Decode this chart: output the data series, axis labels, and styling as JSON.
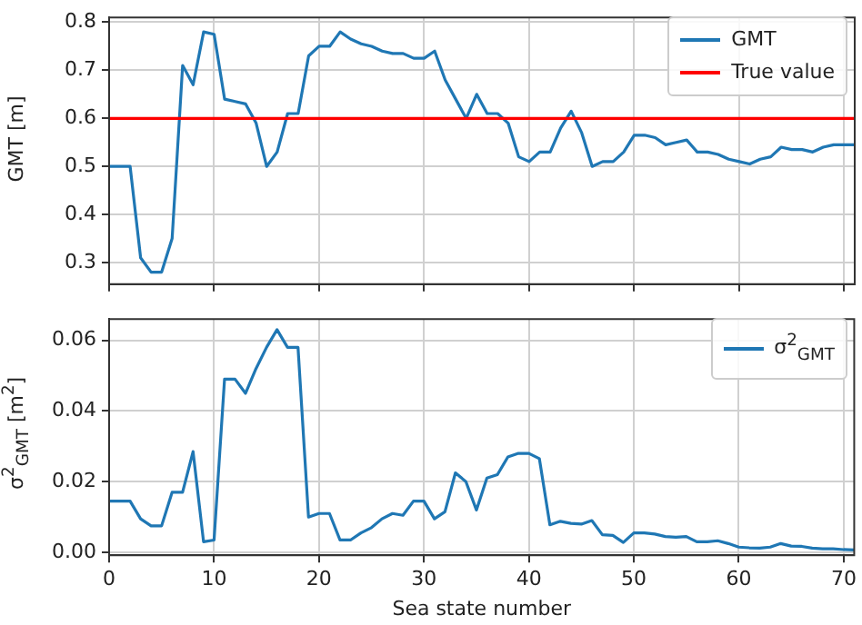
{
  "chart_data": [
    {
      "type": "line",
      "ylabel": "GMT [m]",
      "x": [
        0,
        1,
        2,
        3,
        4,
        5,
        6,
        7,
        8,
        9,
        10,
        11,
        12,
        13,
        14,
        15,
        16,
        17,
        18,
        19,
        20,
        21,
        22,
        23,
        24,
        25,
        26,
        27,
        28,
        29,
        30,
        31,
        32,
        33,
        34,
        35,
        36,
        37,
        38,
        39,
        40,
        41,
        42,
        43,
        44,
        45,
        46,
        47,
        48,
        49,
        50,
        51,
        52,
        53,
        54,
        55,
        56,
        57,
        58,
        59,
        60,
        61,
        62,
        63,
        64,
        65,
        66,
        67,
        68,
        69,
        70,
        71
      ],
      "series": [
        {
          "name": "GMT",
          "color": "#1f77b4",
          "values": [
            0.5,
            0.5,
            0.5,
            0.31,
            0.28,
            0.28,
            0.35,
            0.71,
            0.67,
            0.78,
            0.775,
            0.64,
            0.635,
            0.63,
            0.59,
            0.5,
            0.53,
            0.61,
            0.61,
            0.73,
            0.75,
            0.75,
            0.78,
            0.765,
            0.755,
            0.75,
            0.74,
            0.735,
            0.735,
            0.725,
            0.725,
            0.74,
            0.68,
            0.64,
            0.6,
            0.65,
            0.61,
            0.61,
            0.59,
            0.52,
            0.51,
            0.53,
            0.53,
            0.58,
            0.615,
            0.57,
            0.5,
            0.51,
            0.51,
            0.53,
            0.565,
            0.565,
            0.56,
            0.545,
            0.55,
            0.555,
            0.53,
            0.53,
            0.525,
            0.515,
            0.51,
            0.505,
            0.515,
            0.52,
            0.54,
            0.535,
            0.535,
            0.53,
            0.54,
            0.545,
            0.545,
            0.545
          ]
        }
      ],
      "ref_lines": [
        {
          "axis": "y",
          "value": 0.6,
          "label": "True value",
          "color": "#ff0000"
        }
      ],
      "xlim": [
        0,
        71
      ],
      "xticks": [
        0,
        10,
        20,
        30,
        40,
        50,
        60,
        70
      ],
      "ylim": [
        0.255,
        0.81
      ],
      "yticks": [
        0.3,
        0.4,
        0.5,
        0.6,
        0.7,
        0.8
      ],
      "grid": true,
      "legend": "top right",
      "tick_labels": "y"
    },
    {
      "type": "line",
      "xlabel": "Sea state number",
      "ylabel": "σ$^{2}$$_{GMT}$ [m$^{2}$]",
      "x": [
        0,
        1,
        2,
        3,
        4,
        5,
        6,
        7,
        8,
        9,
        10,
        11,
        12,
        13,
        14,
        15,
        16,
        17,
        18,
        19,
        20,
        21,
        22,
        23,
        24,
        25,
        26,
        27,
        28,
        29,
        30,
        31,
        32,
        33,
        34,
        35,
        36,
        37,
        38,
        39,
        40,
        41,
        42,
        43,
        44,
        45,
        46,
        47,
        48,
        49,
        50,
        51,
        52,
        53,
        54,
        55,
        56,
        57,
        58,
        59,
        60,
        61,
        62,
        63,
        64,
        65,
        66,
        67,
        68,
        69,
        70,
        71
      ],
      "series": [
        {
          "name": "σ$^{2}$$_{GMT}$",
          "color": "#1f77b4",
          "values": [
            0.0145,
            0.0145,
            0.0145,
            0.0095,
            0.0075,
            0.0075,
            0.017,
            0.017,
            0.0285,
            0.003,
            0.0035,
            0.049,
            0.049,
            0.045,
            0.052,
            0.058,
            0.063,
            0.058,
            0.058,
            0.01,
            0.011,
            0.011,
            0.0035,
            0.0035,
            0.0055,
            0.007,
            0.0095,
            0.011,
            0.0105,
            0.0145,
            0.0145,
            0.0095,
            0.0115,
            0.0225,
            0.02,
            0.012,
            0.021,
            0.022,
            0.027,
            0.028,
            0.028,
            0.0265,
            0.0078,
            0.0088,
            0.0082,
            0.008,
            0.009,
            0.005,
            0.0048,
            0.0028,
            0.0055,
            0.0055,
            0.0052,
            0.0045,
            0.0043,
            0.0045,
            0.003,
            0.003,
            0.0033,
            0.0025,
            0.0015,
            0.0013,
            0.0012,
            0.0015,
            0.0025,
            0.0018,
            0.0017,
            0.0012,
            0.001,
            0.001,
            0.0008,
            0.0007
          ]
        }
      ],
      "xlim": [
        0,
        71
      ],
      "xticks": [
        0,
        10,
        20,
        30,
        40,
        50,
        60,
        70
      ],
      "ylim": [
        -0.0008,
        0.066
      ],
      "yticks": [
        {
          "value": 0,
          "label": "0.00"
        },
        {
          "value": 0.02,
          "label": "0.02"
        },
        {
          "value": 0.04,
          "label": "0.04"
        },
        {
          "value": 0.06,
          "label": "0.06"
        }
      ],
      "grid": true,
      "legend": "top right"
    }
  ]
}
